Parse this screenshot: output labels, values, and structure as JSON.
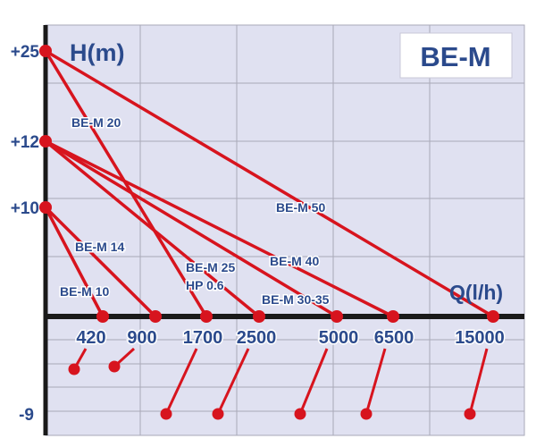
{
  "chart_data": {
    "type": "line",
    "title": "BE-M",
    "ylabel": "H(m)",
    "xlabel": "Q(l/h)",
    "y_ticks": [
      {
        "value": 25,
        "label": "+25"
      },
      {
        "value": 12,
        "label": "+12"
      },
      {
        "value": 10,
        "label": "+10"
      },
      {
        "value": -9,
        "label": "-9"
      }
    ],
    "x_ticks": [
      {
        "value": 420,
        "label": "420"
      },
      {
        "value": 900,
        "label": "900"
      },
      {
        "value": 1700,
        "label": "1700"
      },
      {
        "value": 2500,
        "label": "2500"
      },
      {
        "value": 5000,
        "label": "5000"
      },
      {
        "value": 6500,
        "label": "6500"
      },
      {
        "value": 15000,
        "label": "15000"
      }
    ],
    "series": [
      {
        "name": "BE-M 10",
        "points": [
          [
            0,
            10
          ],
          [
            420,
            0
          ]
        ]
      },
      {
        "name": "BE-M 14",
        "points": [
          [
            0,
            10
          ],
          [
            900,
            0
          ]
        ]
      },
      {
        "name": "BE-M 20",
        "points": [
          [
            0,
            25
          ],
          [
            1700,
            0
          ]
        ]
      },
      {
        "name": "BE-M 25",
        "name2": "HP 0.6",
        "points": [
          [
            0,
            12
          ],
          [
            2500,
            0
          ]
        ]
      },
      {
        "name": "BE-M 30-35",
        "points": [
          [
            0,
            12
          ],
          [
            5000,
            0
          ]
        ]
      },
      {
        "name": "BE-M 40",
        "points": [
          [
            0,
            12
          ],
          [
            6500,
            0
          ]
        ]
      },
      {
        "name": "BE-M 50",
        "points": [
          [
            0,
            25
          ],
          [
            15000,
            0
          ]
        ]
      }
    ],
    "grid": true,
    "colors": {
      "line": "#d7141e",
      "text": "#2b4a8c",
      "background": "#e0e1f1",
      "grid": "#a9a9b8",
      "axis": "#1a1a1a"
    }
  }
}
